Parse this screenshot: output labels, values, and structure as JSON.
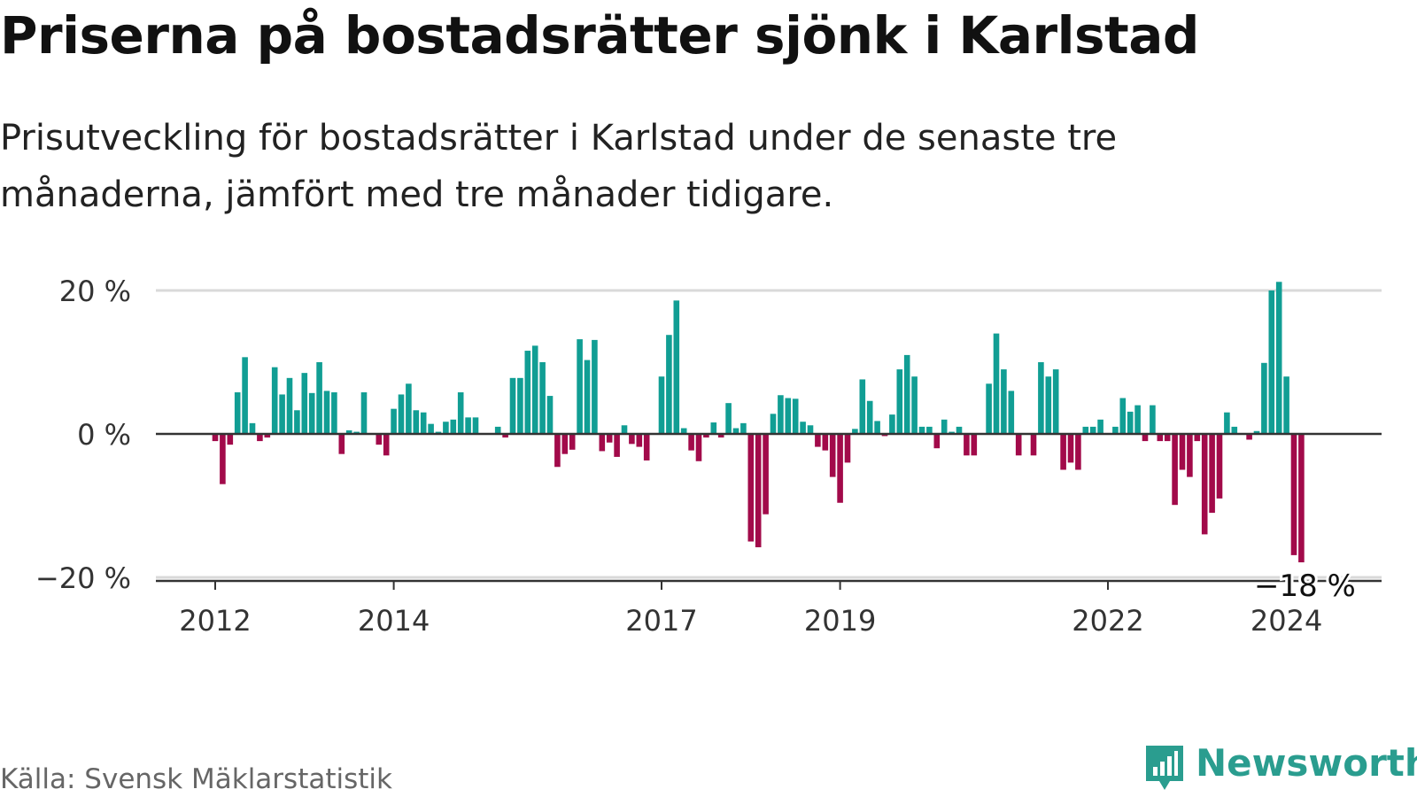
{
  "title": "Priserna på bostadsrätter sjönk i Karlstad",
  "subtitle": "Prisutveckling för bostadsrätter i Karlstad under de senaste tre månaderna, jämfört med tre månader tidigare.",
  "source": "Källa: Svensk Mäklarstatistik",
  "brand": "Newsworthy",
  "colors": {
    "positive": "#119e94",
    "negative": "#a20a4a",
    "axis": "#333333",
    "grid": "#d9d9d9",
    "brand": "#2a9d8f"
  },
  "chart_data": {
    "type": "bar",
    "title": "Priserna på bostadsrätter sjönk i Karlstad",
    "xlabel": "",
    "ylabel": "",
    "ylim": [
      -21,
      21
    ],
    "y_ticks": [
      20,
      0,
      -20
    ],
    "y_tick_labels": [
      "20 %",
      "0 %",
      "−20 %"
    ],
    "x_tick_labels": [
      "2012",
      "2014",
      "2017",
      "2019",
      "2022",
      "2024"
    ],
    "x_tick_index": [
      0,
      24,
      60,
      84,
      120,
      144
    ],
    "start": "2012-01",
    "annotation": {
      "index": 146,
      "label": "−18 %"
    },
    "values": [
      -1,
      -7,
      -1.5,
      5.8,
      10.7,
      1.5,
      -1,
      -0.5,
      9.3,
      5.5,
      7.8,
      3.3,
      8.5,
      5.7,
      10,
      6,
      5.8,
      -2.8,
      0.5,
      0.3,
      5.8,
      0,
      -1.5,
      -3,
      3.5,
      5.5,
      7,
      3.3,
      3,
      1.4,
      0.3,
      1.7,
      2,
      5.8,
      2.3,
      2.3,
      0,
      0,
      1,
      -0.5,
      7.8,
      7.8,
      11.6,
      12.3,
      10,
      5.3,
      -4.6,
      -2.8,
      -2.2,
      13.2,
      10.3,
      13.1,
      -2.4,
      -1.2,
      -3.2,
      1.2,
      -1.4,
      -1.8,
      -3.7,
      0,
      8,
      13.8,
      18.6,
      0.8,
      -2.3,
      -3.8,
      -0.5,
      1.6,
      -0.5,
      4.3,
      0.8,
      1.5,
      -15,
      -15.8,
      -11.2,
      2.8,
      5.4,
      5,
      4.9,
      1.7,
      1.2,
      -1.8,
      -2.3,
      -6,
      -9.6,
      -4,
      0.7,
      7.6,
      4.6,
      1.8,
      -0.3,
      2.7,
      9,
      11,
      8,
      1,
      1,
      -2,
      2,
      0.3,
      1,
      -3,
      -3,
      0,
      7,
      14,
      9,
      6,
      -3,
      0,
      -3,
      10,
      8,
      9,
      -5,
      -4,
      -5,
      1,
      1,
      2,
      0,
      1,
      5,
      3.1,
      4,
      -1,
      4,
      -1,
      -1,
      -9.9,
      -5,
      -6,
      -1,
      -14,
      -11,
      -9,
      3,
      1,
      0,
      -0.8,
      0.4,
      9.9,
      20,
      21.2,
      8,
      -16.9,
      -17.9
    ]
  }
}
